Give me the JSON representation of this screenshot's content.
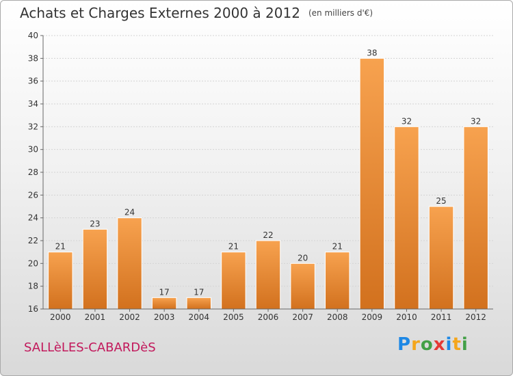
{
  "chart_data": {
    "type": "bar",
    "title": "Achats et Charges Externes 2000 à 2012",
    "subtitle": "(en milliers d'€)",
    "categories": [
      "2000",
      "2001",
      "2002",
      "2003",
      "2004",
      "2005",
      "2006",
      "2007",
      "2008",
      "2009",
      "2010",
      "2011",
      "2012"
    ],
    "values": [
      21,
      23,
      24,
      17,
      17,
      21,
      22,
      20,
      21,
      38,
      32,
      25,
      32
    ],
    "ylim": [
      16,
      40
    ],
    "yticks": [
      16,
      18,
      20,
      22,
      24,
      26,
      28,
      30,
      32,
      34,
      36,
      38,
      40
    ],
    "grid": true,
    "bar_color_top": "#f7a24f",
    "bar_color_bottom": "#d2711e"
  },
  "footer": {
    "commune": "SALLèLES-CABARDèS",
    "logo_letters": [
      "P",
      "r",
      "o",
      "x",
      "i",
      "t",
      "i"
    ],
    "logo_colors": [
      "#1e88e5",
      "#f4a61c",
      "#43a047",
      "#e53935",
      "#1e88e5",
      "#f4a61c",
      "#43a047"
    ]
  }
}
